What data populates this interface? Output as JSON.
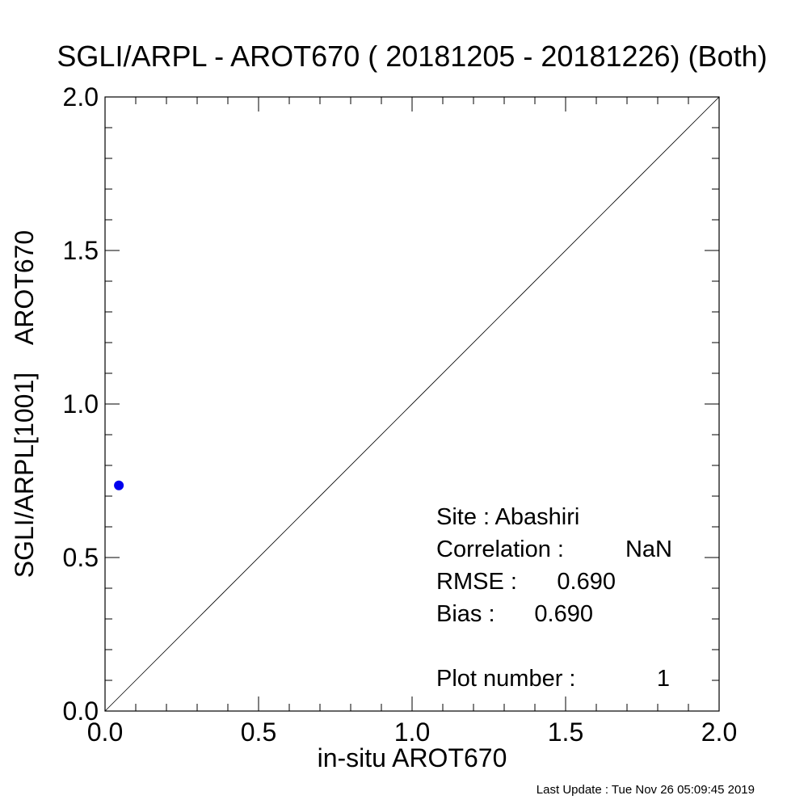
{
  "chart_data": {
    "type": "scatter",
    "title": "SGLI/ARPL - AROT670 ( 20181205 - 20181226) (Both)",
    "xlabel": "in-situ AROT670",
    "ylabel": "SGLI/ARPL[1001]    AROT670",
    "xlim": [
      0.0,
      2.0
    ],
    "ylim": [
      0.0,
      2.0
    ],
    "x_ticks": [
      "0.0",
      "0.5",
      "1.0",
      "1.5",
      "2.0"
    ],
    "y_ticks": [
      "0.0",
      "0.5",
      "1.0",
      "1.5",
      "2.0"
    ],
    "reference_line": "1:1",
    "grid": false,
    "point_color": "#0000ee",
    "line_color": "#000000",
    "series": [
      {
        "x": [
          0.045
        ],
        "y": [
          0.735
        ]
      }
    ]
  },
  "stats": {
    "site": "Site : Abashiri",
    "correlation_label": "Correlation :",
    "correlation_value": "NaN",
    "rmse_label": "RMSE :",
    "rmse_value": "0.690",
    "bias_label": "Bias :",
    "bias_value": "0.690",
    "plot_number_label": "Plot number :",
    "plot_number_value": "1"
  },
  "footer": "Last Update : Tue Nov 26 05:09:45 2019"
}
